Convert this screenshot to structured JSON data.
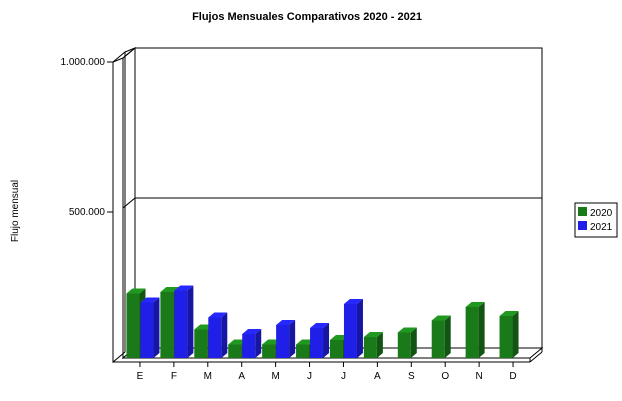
{
  "chart_data": {
    "type": "bar",
    "title": "Flujos Mensuales Comparativos 2020 - 2021",
    "xlabel": "",
    "ylabel": "Flujo mensual",
    "categories": [
      "E",
      "F",
      "M",
      "A",
      "M",
      "J",
      "J",
      "A",
      "S",
      "O",
      "N",
      "D"
    ],
    "series": [
      {
        "name": "2020",
        "color": "#1a7a1a",
        "values": [
          215000,
          220000,
          95000,
          45000,
          45000,
          45000,
          60000,
          70000,
          85000,
          125000,
          170000,
          140000
        ]
      },
      {
        "name": "2021",
        "color": "#1f1fe8",
        "values": [
          185000,
          225000,
          135000,
          80000,
          110000,
          100000,
          180000,
          null,
          null,
          null,
          null,
          null
        ]
      }
    ],
    "ylim": [
      0,
      1000000
    ],
    "yticks": [
      {
        "value": 1000000,
        "label": "1.000.000"
      },
      {
        "value": 500000,
        "label": "500.000"
      }
    ],
    "grid": "horizontal",
    "legend_position": "right",
    "projection": "3d"
  }
}
